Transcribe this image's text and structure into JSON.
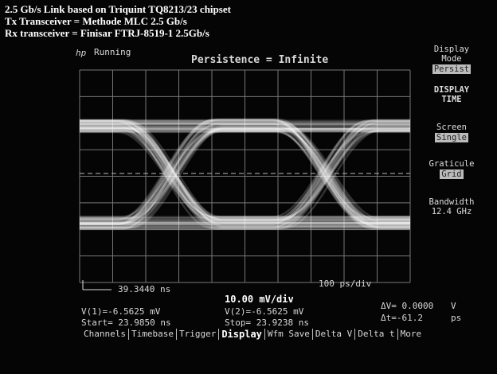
{
  "caption": [
    "2.5 Gb/s Link based on Triquint TQ8213/23 chipset",
    "Tx Transceiver = Methode MLC 2.5 Gb/s",
    "Rx transceiver = Finisar FTRJ-8519-1 2.5Gb/s"
  ],
  "status": {
    "brand": "hp",
    "state": "Running",
    "title": "Persistence = Infinite"
  },
  "softkeys": [
    {
      "label": [
        "Display",
        "Mode"
      ],
      "value": "Persist"
    },
    {
      "label": [
        "DISPLAY",
        "TIME"
      ]
    },
    {
      "label": [
        "Screen"
      ],
      "value": "Single"
    },
    {
      "label": [
        "Graticule"
      ],
      "value": "Grid"
    },
    {
      "label": [
        "Bandwidth"
      ],
      "value": "12.4 GHz"
    }
  ],
  "timebase": {
    "start": "39.3440 ns",
    "scale": "100 ps/div"
  },
  "readouts": {
    "v1": "V(1)=-6.5625 mV",
    "vscale": "10.00 mV/div",
    "v2": "V(2)=-6.5625 mV",
    "start": "Start= 23.9850 ns",
    "stop": "Stop= 23.9238 ns",
    "dv": "ΔV= 0.0000",
    "dv_unit": "V",
    "dt": "Δt=-61.2",
    "dt_unit": "ps"
  },
  "menu": [
    "Channels",
    "Timebase",
    "Trigger",
    "Display",
    "Wfm Save",
    "Delta V",
    "Delta t",
    "More"
  ]
}
